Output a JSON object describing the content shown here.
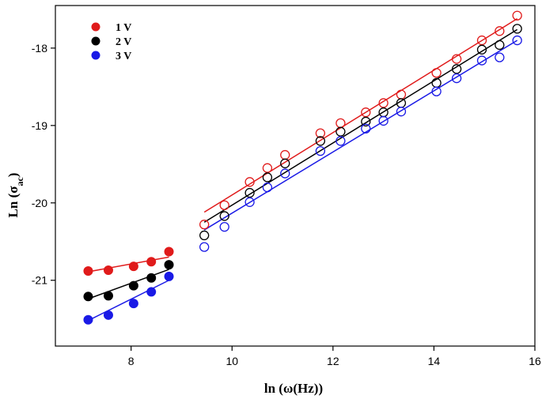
{
  "chart_data": {
    "type": "scatter",
    "xlabel_main": "ln (ω(Hz))",
    "ylabel_main": "Ln (σ",
    "ylabel_sub": "ac",
    "ylabel_close": ")",
    "xlim": [
      6.5,
      16
    ],
    "ylim": [
      -21.85,
      -17.45
    ],
    "xticks": [
      8,
      10,
      12,
      14,
      16
    ],
    "xtick_labels": [
      "8",
      "10",
      "12",
      "14",
      "16"
    ],
    "yticks": [
      -21,
      -20,
      -19,
      -18
    ],
    "ytick_labels": [
      "-21",
      "-20",
      "-19",
      "-18"
    ],
    "grid": false,
    "legend_position": "top-left",
    "series": [
      {
        "name": "1 V",
        "color": "#e01b1b",
        "low_x": [
          7.15,
          7.55,
          8.05,
          8.4,
          8.75
        ],
        "low_y": [
          -20.88,
          -20.87,
          -20.82,
          -20.76,
          -20.63
        ],
        "low_fit": [
          [
            7.15,
            -20.89
          ],
          [
            8.75,
            -20.7
          ]
        ],
        "high_x": [
          9.45,
          9.85,
          10.35,
          10.7,
          11.05,
          11.75,
          12.15,
          12.65,
          13.0,
          13.35,
          14.05,
          14.45,
          14.95,
          15.3,
          15.65
        ],
        "high_y": [
          -20.28,
          -20.03,
          -19.73,
          -19.55,
          -19.38,
          -19.1,
          -18.97,
          -18.83,
          -18.71,
          -18.6,
          -18.32,
          -18.14,
          -17.9,
          -17.78,
          -17.58
        ],
        "high_fit": [
          [
            9.45,
            -20.12
          ],
          [
            15.65,
            -17.62
          ]
        ]
      },
      {
        "name": "2 V",
        "color": "#000000",
        "low_x": [
          7.15,
          7.55,
          8.05,
          8.4,
          8.75
        ],
        "low_y": [
          -21.21,
          -21.2,
          -21.07,
          -20.97,
          -20.8
        ],
        "low_fit": [
          [
            7.15,
            -21.24
          ],
          [
            8.75,
            -20.86
          ]
        ],
        "high_x": [
          9.45,
          9.85,
          10.35,
          10.7,
          11.05,
          11.75,
          12.15,
          12.65,
          13.0,
          13.35,
          14.05,
          14.45,
          14.95,
          15.3,
          15.65
        ],
        "high_y": [
          -20.42,
          -20.17,
          -19.87,
          -19.67,
          -19.49,
          -19.2,
          -19.08,
          -18.95,
          -18.83,
          -18.71,
          -18.45,
          -18.27,
          -18.02,
          -17.96,
          -17.75
        ],
        "high_fit": [
          [
            9.45,
            -20.25
          ],
          [
            15.65,
            -17.76
          ]
        ]
      },
      {
        "name": "3 V",
        "color": "#1a1ae6",
        "low_x": [
          7.15,
          7.55,
          8.05,
          8.4,
          8.75
        ],
        "low_y": [
          -21.51,
          -21.45,
          -21.3,
          -21.15,
          -20.95
        ],
        "low_fit": [
          [
            7.15,
            -21.52
          ],
          [
            8.75,
            -21.0
          ]
        ],
        "high_x": [
          9.45,
          9.85,
          10.35,
          10.7,
          11.05,
          11.75,
          12.15,
          12.65,
          13.0,
          13.35,
          14.05,
          14.45,
          14.95,
          15.3,
          15.65
        ],
        "high_y": [
          -20.57,
          -20.31,
          -19.99,
          -19.8,
          -19.62,
          -19.33,
          -19.2,
          -19.04,
          -18.94,
          -18.82,
          -18.56,
          -18.39,
          -18.16,
          -18.12,
          -17.9
        ],
        "high_fit": [
          [
            9.45,
            -20.35
          ],
          [
            15.65,
            -17.9
          ]
        ]
      }
    ]
  }
}
